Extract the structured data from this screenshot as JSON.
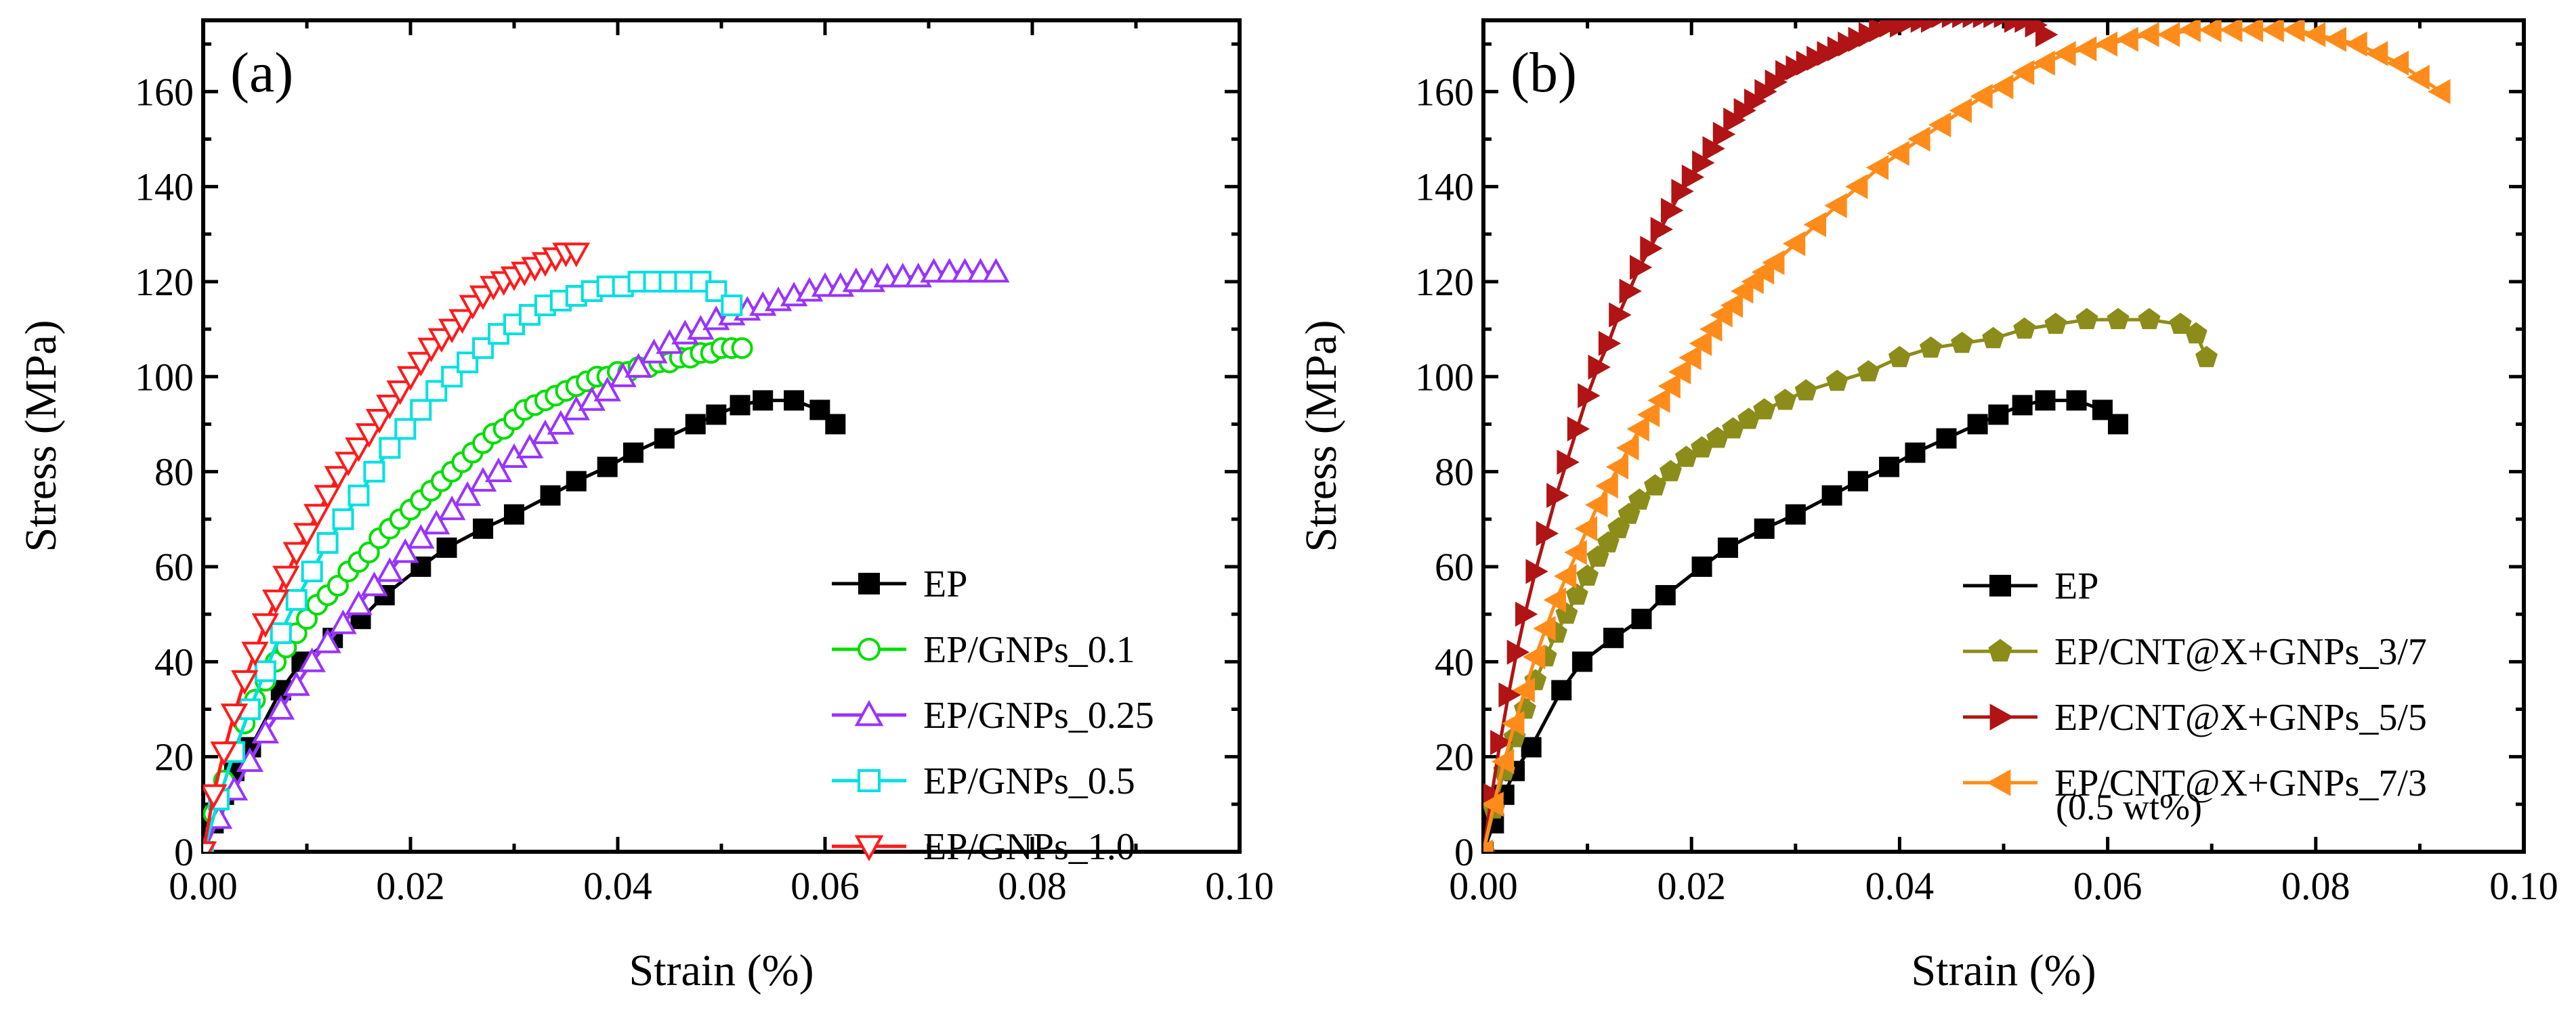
{
  "chart_data": [
    {
      "panel": "(a)",
      "type": "line",
      "xlabel": "Strain (%)",
      "ylabel": "Stress (MPa)",
      "xlim": [
        0,
        0.1
      ],
      "ylim": [
        0,
        175
      ],
      "xticks": [
        0.0,
        0.02,
        0.04,
        0.06,
        0.08,
        0.1
      ],
      "xtick_labels": [
        "0.00",
        "0.02",
        "0.04",
        "0.06",
        "0.08",
        "0.10"
      ],
      "yticks": [
        0,
        20,
        40,
        60,
        80,
        100,
        120,
        140,
        160
      ],
      "ytick_labels": [
        "0",
        "20",
        "40",
        "60",
        "80",
        "100",
        "120",
        "140",
        "160"
      ],
      "legend_position": "bottom-right",
      "series": [
        {
          "name": "EP",
          "color": "#000000",
          "marker": "square-filled",
          "x": [
            0.0,
            0.001,
            0.002,
            0.003,
            0.0046,
            0.0075,
            0.0095,
            0.0125,
            0.0152,
            0.0175,
            0.021,
            0.0235,
            0.027,
            0.03,
            0.0335,
            0.036,
            0.039,
            0.0415,
            0.0445,
            0.0475,
            0.0495,
            0.0518,
            0.054,
            0.057,
            0.0595,
            0.061
          ],
          "y": [
            0,
            6,
            12,
            17,
            22,
            34,
            40,
            45,
            49,
            54,
            60,
            64,
            68,
            71,
            75,
            78,
            81,
            84,
            87,
            90,
            92,
            94,
            95,
            95,
            93,
            90
          ]
        },
        {
          "name": "EP/GNPs_0.1",
          "color": "#00dd00",
          "marker": "circle-open",
          "x": [
            0.0,
            0.001,
            0.002,
            0.003,
            0.004,
            0.005,
            0.006,
            0.007,
            0.008,
            0.009,
            0.01,
            0.011,
            0.012,
            0.013,
            0.014,
            0.015,
            0.016,
            0.017,
            0.018,
            0.019,
            0.02,
            0.021,
            0.022,
            0.023,
            0.024,
            0.025,
            0.026,
            0.027,
            0.028,
            0.029,
            0.03,
            0.031,
            0.032,
            0.033,
            0.034,
            0.035,
            0.036,
            0.037,
            0.038,
            0.039,
            0.04,
            0.041,
            0.042,
            0.043,
            0.044,
            0.045,
            0.046,
            0.047,
            0.048,
            0.049,
            0.05,
            0.051,
            0.052
          ],
          "y": [
            0,
            8,
            15,
            21,
            27,
            32,
            36,
            40,
            43,
            46,
            49,
            52,
            54,
            56,
            59,
            61,
            63,
            66,
            68,
            70,
            72,
            74,
            76,
            78,
            80,
            82,
            84,
            86,
            88,
            89,
            91,
            93,
            94,
            95,
            96,
            97,
            98,
            99,
            100,
            100,
            101,
            101,
            102,
            102,
            103,
            103,
            104,
            104,
            105,
            105,
            106,
            106,
            106
          ]
        },
        {
          "name": "EP/GNPs_0.25",
          "color": "#9933ff",
          "marker": "triangle-up-open",
          "x": [
            0.0,
            0.0015,
            0.003,
            0.0045,
            0.006,
            0.0075,
            0.009,
            0.0105,
            0.012,
            0.0135,
            0.015,
            0.0165,
            0.018,
            0.0195,
            0.021,
            0.0225,
            0.024,
            0.0255,
            0.027,
            0.0285,
            0.03,
            0.0315,
            0.033,
            0.0345,
            0.036,
            0.0375,
            0.039,
            0.0405,
            0.042,
            0.0435,
            0.045,
            0.0465,
            0.048,
            0.0495,
            0.051,
            0.0525,
            0.054,
            0.0555,
            0.057,
            0.0585,
            0.06,
            0.0615,
            0.063,
            0.0645,
            0.066,
            0.0675,
            0.069,
            0.0705,
            0.072,
            0.0735,
            0.075,
            0.0765
          ],
          "y": [
            0,
            7,
            13,
            19,
            25,
            30,
            35,
            40,
            44,
            48,
            52,
            56,
            59,
            63,
            66,
            69,
            72,
            75,
            78,
            80,
            83,
            85,
            88,
            90,
            93,
            95,
            97,
            100,
            102,
            105,
            107,
            109,
            110,
            112,
            113,
            114,
            115,
            116,
            117,
            118,
            119,
            119,
            120,
            120,
            121,
            121,
            121,
            122,
            122,
            122,
            122,
            122
          ]
        },
        {
          "name": "EP/GNPs_0.5",
          "color": "#00e0e0",
          "marker": "square-open",
          "x": [
            0.0,
            0.0015,
            0.003,
            0.0045,
            0.006,
            0.0075,
            0.009,
            0.0105,
            0.012,
            0.0135,
            0.015,
            0.0165,
            0.018,
            0.0195,
            0.021,
            0.0225,
            0.024,
            0.0255,
            0.027,
            0.0285,
            0.03,
            0.0315,
            0.033,
            0.0345,
            0.036,
            0.0375,
            0.039,
            0.0405,
            0.042,
            0.0435,
            0.045,
            0.0465,
            0.048,
            0.0495,
            0.051
          ],
          "y": [
            0,
            11,
            21,
            30,
            38,
            46,
            53,
            59,
            65,
            70,
            75,
            80,
            85,
            89,
            93,
            97,
            100,
            103,
            106,
            109,
            111,
            113,
            115,
            116,
            117,
            118,
            119,
            119,
            120,
            120,
            120,
            120,
            120,
            118,
            115
          ]
        },
        {
          "name": "EP/GNPs_1.0",
          "color": "#ff1a1a",
          "marker": "triangle-down-open",
          "x": [
            0.0,
            0.001,
            0.002,
            0.003,
            0.004,
            0.005,
            0.006,
            0.007,
            0.008,
            0.009,
            0.01,
            0.011,
            0.012,
            0.013,
            0.014,
            0.015,
            0.016,
            0.017,
            0.018,
            0.019,
            0.02,
            0.021,
            0.022,
            0.023,
            0.024,
            0.025,
            0.026,
            0.027,
            0.028,
            0.029,
            0.03,
            0.031,
            0.032,
            0.033,
            0.034,
            0.035,
            0.036
          ],
          "y": [
            0,
            12,
            21,
            29,
            36,
            42,
            48,
            53,
            58,
            63,
            67,
            71,
            75,
            79,
            82,
            85,
            88,
            91,
            94,
            97,
            100,
            103,
            106,
            108,
            110,
            112,
            115,
            117,
            119,
            120,
            121,
            122,
            123,
            124,
            125,
            126,
            126
          ]
        }
      ]
    },
    {
      "panel": "(b)",
      "type": "line",
      "xlabel": "Strain (%)",
      "ylabel": "Stress (MPa)",
      "xlim": [
        0,
        0.1
      ],
      "ylim": [
        0,
        175
      ],
      "xticks": [
        0.0,
        0.02,
        0.04,
        0.06,
        0.08,
        0.1
      ],
      "xtick_labels": [
        "0.00",
        "0.02",
        "0.04",
        "0.06",
        "0.08",
        "0.10"
      ],
      "yticks": [
        0,
        20,
        40,
        60,
        80,
        100,
        120,
        140,
        160
      ],
      "ytick_labels": [
        "0",
        "20",
        "40",
        "60",
        "80",
        "100",
        "120",
        "140",
        "160"
      ],
      "legend_position": "bottom-right",
      "legend_note": "(0.5 wt%)",
      "series": [
        {
          "name": "EP",
          "color": "#000000",
          "marker": "square-filled",
          "x": [
            0.0,
            0.001,
            0.002,
            0.003,
            0.0046,
            0.0075,
            0.0095,
            0.0125,
            0.0152,
            0.0175,
            0.021,
            0.0235,
            0.027,
            0.03,
            0.0335,
            0.036,
            0.039,
            0.0415,
            0.0445,
            0.0475,
            0.0495,
            0.0518,
            0.054,
            0.057,
            0.0595,
            0.061
          ],
          "y": [
            0,
            6,
            12,
            17,
            22,
            34,
            40,
            45,
            49,
            54,
            60,
            64,
            68,
            71,
            75,
            78,
            81,
            84,
            87,
            90,
            92,
            94,
            95,
            95,
            93,
            90
          ]
        },
        {
          "name": "EP/CNT@X+GNPs_3/7",
          "color": "#8c8c1a",
          "marker": "pentagon-filled",
          "x": [
            0.0,
            0.001,
            0.002,
            0.003,
            0.004,
            0.005,
            0.006,
            0.007,
            0.008,
            0.009,
            0.01,
            0.011,
            0.012,
            0.013,
            0.014,
            0.015,
            0.0165,
            0.018,
            0.0195,
            0.021,
            0.0225,
            0.024,
            0.0255,
            0.027,
            0.029,
            0.031,
            0.034,
            0.037,
            0.04,
            0.043,
            0.046,
            0.049,
            0.052,
            0.055,
            0.058,
            0.061,
            0.064,
            0.067,
            0.0685,
            0.0695
          ],
          "y": [
            0,
            9,
            17,
            24,
            30,
            36,
            41,
            46,
            50,
            54,
            58,
            62,
            65,
            68,
            71,
            74,
            77,
            80,
            83,
            85,
            87,
            89,
            91,
            93,
            95,
            97,
            99,
            101,
            104,
            106,
            107,
            108,
            110,
            111,
            112,
            112,
            112,
            111,
            109,
            104
          ]
        },
        {
          "name": "EP/CNT@X+GNPs_5/5",
          "color": "#b01414",
          "marker": "triangle-right-filled",
          "x": [
            0.0,
            0.0008,
            0.0016,
            0.0024,
            0.0032,
            0.004,
            0.005,
            0.006,
            0.007,
            0.008,
            0.009,
            0.01,
            0.011,
            0.012,
            0.013,
            0.014,
            0.015,
            0.016,
            0.017,
            0.018,
            0.019,
            0.02,
            0.021,
            0.022,
            0.023,
            0.024,
            0.025,
            0.026,
            0.027,
            0.028,
            0.029,
            0.03,
            0.031,
            0.032,
            0.033,
            0.034,
            0.035,
            0.036,
            0.037,
            0.038,
            0.039,
            0.04,
            0.041,
            0.042,
            0.043,
            0.044,
            0.045,
            0.046,
            0.047,
            0.048,
            0.049,
            0.05,
            0.051,
            0.052,
            0.053,
            0.054
          ],
          "y": [
            0,
            12,
            23,
            33,
            42,
            50,
            59,
            67,
            75,
            82,
            89,
            96,
            102,
            107,
            113,
            118,
            123,
            127,
            131,
            135,
            139,
            142,
            145,
            148,
            151,
            154,
            156,
            158,
            160,
            162,
            164,
            165,
            166,
            167,
            168,
            169,
            170,
            171,
            172,
            173,
            174,
            174,
            175,
            175,
            175,
            176,
            176,
            176,
            176,
            176,
            176,
            176,
            175,
            175,
            174,
            172
          ]
        },
        {
          "name": "EP/CNT@X+GNPs_7/3",
          "color": "#ff8c1a",
          "marker": "triangle-left-filled",
          "x": [
            0.0,
            0.001,
            0.002,
            0.003,
            0.004,
            0.005,
            0.006,
            0.007,
            0.008,
            0.009,
            0.01,
            0.011,
            0.012,
            0.013,
            0.014,
            0.015,
            0.016,
            0.017,
            0.018,
            0.019,
            0.02,
            0.021,
            0.022,
            0.023,
            0.024,
            0.025,
            0.026,
            0.027,
            0.028,
            0.03,
            0.032,
            0.034,
            0.036,
            0.038,
            0.04,
            0.042,
            0.044,
            0.046,
            0.048,
            0.05,
            0.052,
            0.054,
            0.056,
            0.058,
            0.06,
            0.062,
            0.064,
            0.066,
            0.068,
            0.07,
            0.072,
            0.074,
            0.076,
            0.078,
            0.08,
            0.082,
            0.084,
            0.086,
            0.088,
            0.09,
            0.092
          ],
          "y": [
            0,
            10,
            19,
            27,
            34,
            41,
            47,
            53,
            58,
            63,
            68,
            73,
            77,
            81,
            85,
            89,
            92,
            95,
            98,
            101,
            104,
            107,
            110,
            113,
            115,
            118,
            120,
            122,
            124,
            128,
            132,
            136,
            140,
            144,
            147,
            150,
            153,
            156,
            159,
            161,
            164,
            166,
            168,
            169,
            170,
            171,
            172,
            172,
            173,
            173,
            173,
            173,
            173,
            173,
            172,
            171,
            170,
            168,
            166,
            163,
            160
          ]
        }
      ]
    }
  ]
}
